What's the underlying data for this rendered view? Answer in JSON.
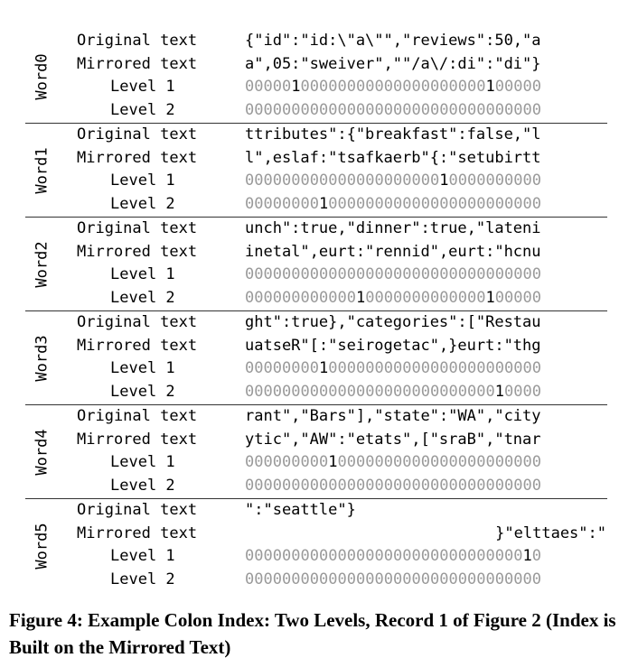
{
  "row_labels": {
    "original": "Original text",
    "mirrored": "Mirrored text",
    "level1": "Level 1",
    "level2": "Level 2"
  },
  "groups": [
    {
      "word": "Word0",
      "original": "{\"id\":\"id:\\\"a\\\"\",\"reviews\":50,\"a",
      "mirrored": "a\",05:\"sweiver\",\"\"/a\\/:di\":\"di\"}",
      "level1": "00000100000000000000000000100000",
      "level2": "00000000000000000000000000000000"
    },
    {
      "word": "Word1",
      "original": "ttributes\":{\"breakfast\":false,\"l",
      "mirrored": "l\",eslaf:\"tsafkaerb\"{:\"setubirtt",
      "level1": "00000000000000000000010000000000",
      "level2": "00000000100000000000000000000000"
    },
    {
      "word": "Word2",
      "original": "unch\":true,\"dinner\":true,\"lateni",
      "mirrored": "inetal\",eurt:\"rennid\",eurt:\"hcnu",
      "level1": "00000000000000000000000000000000",
      "level2": "00000000000010000000000000100000"
    },
    {
      "word": "Word3",
      "original": "ght\":true},\"categories\":[\"Restau",
      "mirrored": "uatseR\"[:\"seirogetac\",}eurt:\"thg",
      "level1": "00000000100000000000000000000000",
      "level2": "00000000000000000000000000010000"
    },
    {
      "word": "Word4",
      "original": "rant\",\"Bars\"],\"state\":\"WA\",\"city",
      "mirrored": "ytic\",\"AW\":\"etats\",[\"sraB\",\"tnar",
      "level1": "00000000010000000000000000000000",
      "level2": "00000000000000000000000000000000"
    },
    {
      "word": "Word5",
      "original": "\":\"seattle\"}",
      "mirrored": "}\"elttaes\":\"",
      "level1": "00000000000000000000000000000010",
      "level2": "00000000000000000000000000000000"
    }
  ],
  "caption": "Figure 4: Example Colon Index: Two Levels, Record 1 of Figure 2 (Index is Built on the Mirrored Text)"
}
